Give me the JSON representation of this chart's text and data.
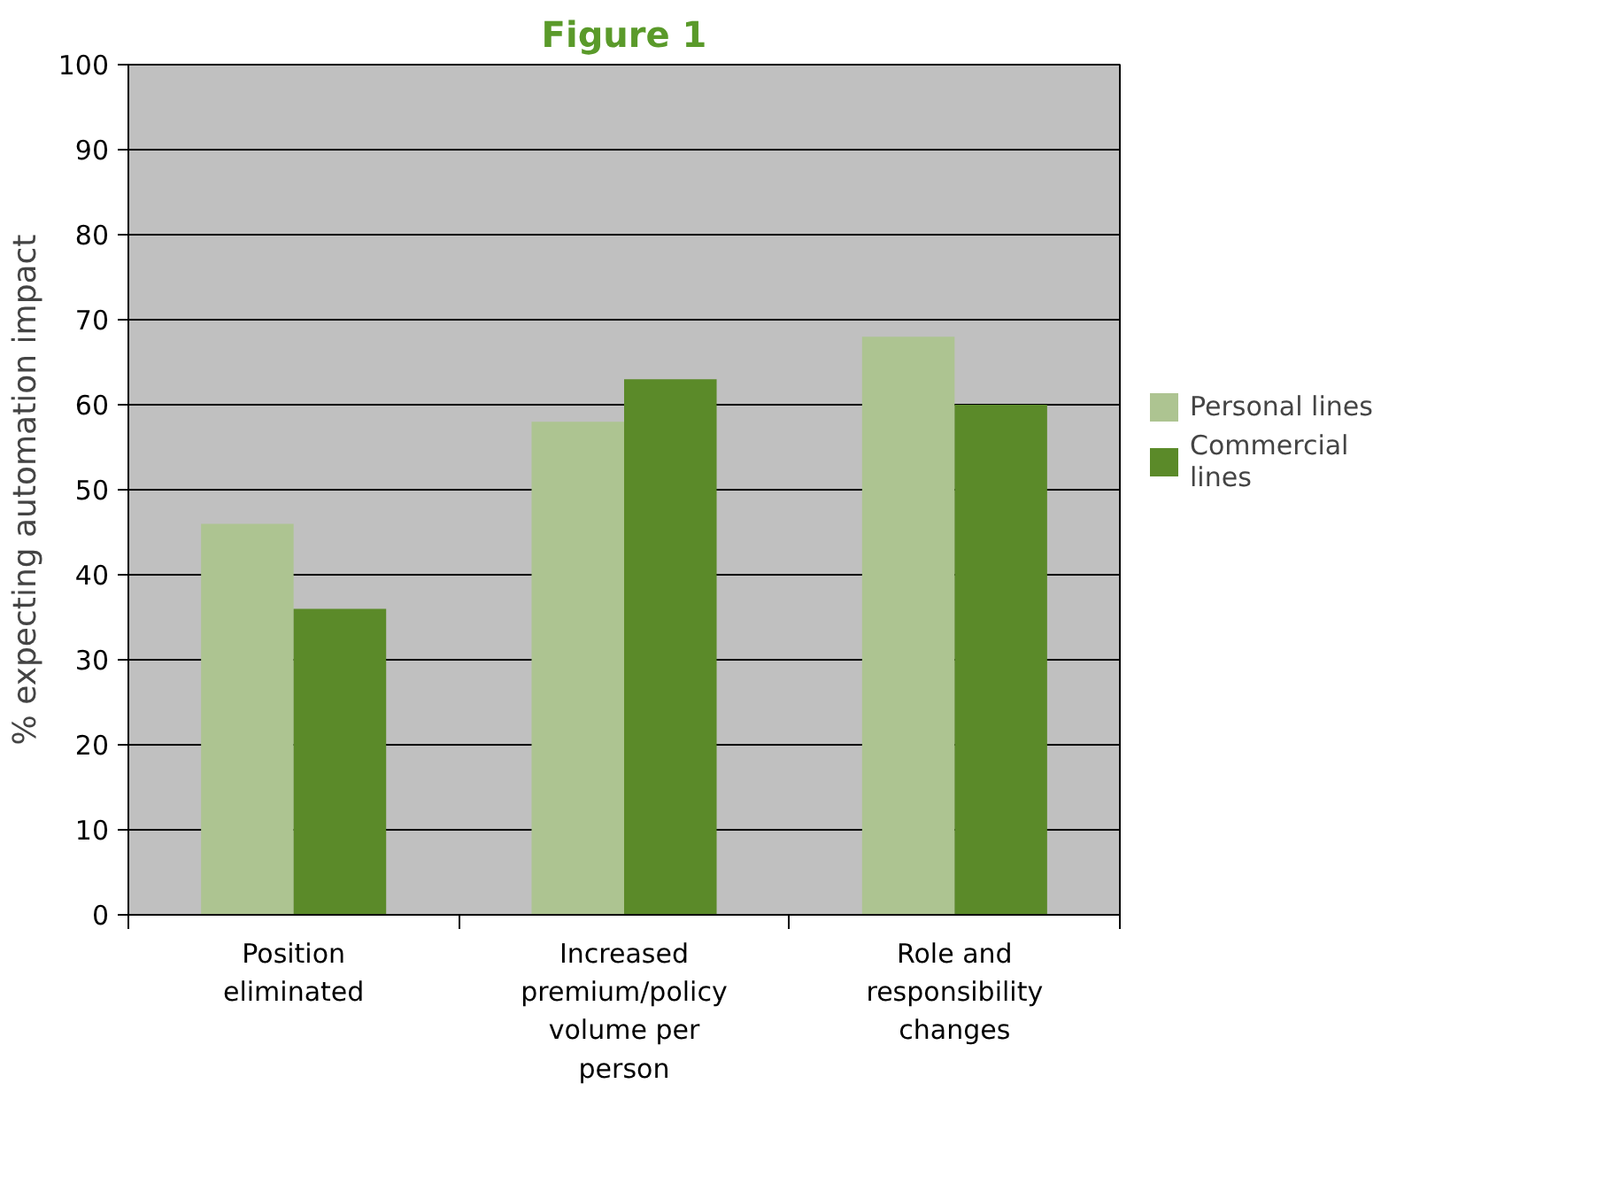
{
  "chart_data": {
    "type": "bar",
    "title": "Figure 1",
    "ylabel": "% expecting automation impact",
    "categories": [
      "Position eliminated",
      "Increased premium/policy volume per person",
      "Role and responsibility changes"
    ],
    "series": [
      {
        "name": "Personal lines",
        "color": "#adc491",
        "values": [
          46,
          58,
          68
        ]
      },
      {
        "name": "Commercial lines",
        "color": "#5b8a29",
        "values": [
          36,
          63,
          60
        ]
      }
    ],
    "ylim": [
      0,
      100
    ],
    "yticks": [
      0,
      10,
      20,
      30,
      40,
      50,
      60,
      70,
      80,
      90,
      100
    ],
    "grid": "y",
    "legend": "right"
  }
}
